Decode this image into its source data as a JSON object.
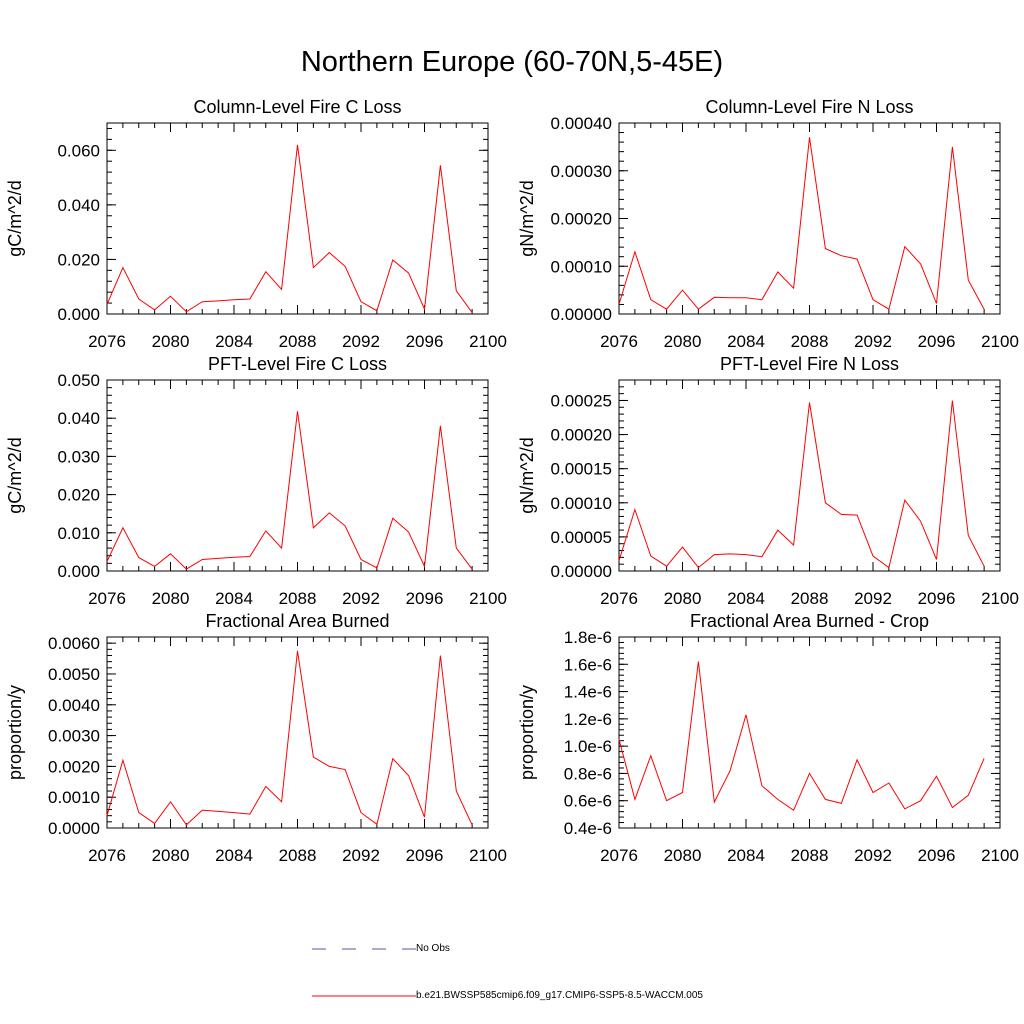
{
  "title": "Northern Europe (60-70N,5-45E)",
  "colors": {
    "series": "#ff0000",
    "obs": "#5555aa",
    "axis": "#000000"
  },
  "legend": [
    {
      "label": "No Obs",
      "style": "dashed"
    },
    {
      "label": "b.e21.BWSSP585cmip6.f09_g17.CMIP6-SSP5-8.5-WACCM.005",
      "style": "solid"
    }
  ],
  "chart_data": [
    {
      "type": "line",
      "title": "Column-Level Fire C Loss",
      "ylabel": "gC/m^2/d",
      "xlim": [
        2076,
        2100
      ],
      "ylim": [
        0,
        0.07
      ],
      "xticks": [
        "2076",
        "2080",
        "2084",
        "2088",
        "2092",
        "2096",
        "2100"
      ],
      "yticks": [
        {
          "v": 0,
          "label": "0.000"
        },
        {
          "v": 0.02,
          "label": "0.020"
        },
        {
          "v": 0.04,
          "label": "0.040"
        },
        {
          "v": 0.06,
          "label": "0.060"
        }
      ],
      "x": [
        2076,
        2077,
        2078,
        2079,
        2080,
        2081,
        2082,
        2083,
        2084,
        2085,
        2086,
        2087,
        2088,
        2089,
        2090,
        2091,
        2092,
        2093,
        2094,
        2095,
        2096,
        2097,
        2098,
        2099
      ],
      "series": [
        {
          "name": "b.e21.BWSSP585cmip6.f09_g17.CMIP6-SSP5-8.5-WACCM.005",
          "values": [
            0.0035,
            0.017,
            0.0055,
            0.0015,
            0.0065,
            0.0008,
            0.0045,
            0.0048,
            0.0052,
            0.0055,
            0.0155,
            0.009,
            0.062,
            0.017,
            0.0225,
            0.0175,
            0.0045,
            0.0012,
            0.0198,
            0.015,
            0.0018,
            0.0545,
            0.0085,
            0.0005
          ]
        }
      ]
    },
    {
      "type": "line",
      "title": "Column-Level Fire N Loss",
      "ylabel": "gN/m^2/d",
      "xlim": [
        2076,
        2100
      ],
      "ylim": [
        0,
        0.0004
      ],
      "xticks": [
        "2076",
        "2080",
        "2084",
        "2088",
        "2092",
        "2096",
        "2100"
      ],
      "yticks": [
        {
          "v": 0,
          "label": "0.00000"
        },
        {
          "v": 0.0001,
          "label": "0.00010"
        },
        {
          "v": 0.0002,
          "label": "0.00020"
        },
        {
          "v": 0.0003,
          "label": "0.00030"
        },
        {
          "v": 0.0004,
          "label": "0.00040"
        }
      ],
      "x": [
        2076,
        2077,
        2078,
        2079,
        2080,
        2081,
        2082,
        2083,
        2084,
        2085,
        2086,
        2087,
        2088,
        2089,
        2090,
        2091,
        2092,
        2093,
        2094,
        2095,
        2096,
        2097,
        2098,
        2099
      ],
      "series": [
        {
          "name": "b.e21.BWSSP585cmip6.f09_g17.CMIP6-SSP5-8.5-WACCM.005",
          "values": [
            2e-05,
            0.00013,
            3e-05,
            1e-05,
            5e-05,
            1e-05,
            3.5e-05,
            3.4e-05,
            3.4e-05,
            3e-05,
            8.8e-05,
            5.4e-05,
            0.00037,
            0.000137,
            0.000122,
            0.000115,
            3e-05,
            1e-05,
            0.000141,
            0.000105,
            2.2e-05,
            0.00035,
            7.1e-05,
            1e-05
          ]
        }
      ]
    },
    {
      "type": "line",
      "title": "PFT-Level Fire C Loss",
      "ylabel": "gC/m^2/d",
      "xlim": [
        2076,
        2100
      ],
      "ylim": [
        0,
        0.05
      ],
      "xticks": [
        "2076",
        "2080",
        "2084",
        "2088",
        "2092",
        "2096",
        "2100"
      ],
      "yticks": [
        {
          "v": 0,
          "label": "0.000"
        },
        {
          "v": 0.01,
          "label": "0.010"
        },
        {
          "v": 0.02,
          "label": "0.020"
        },
        {
          "v": 0.03,
          "label": "0.030"
        },
        {
          "v": 0.04,
          "label": "0.040"
        },
        {
          "v": 0.05,
          "label": "0.050"
        }
      ],
      "x": [
        2076,
        2077,
        2078,
        2079,
        2080,
        2081,
        2082,
        2083,
        2084,
        2085,
        2086,
        2087,
        2088,
        2089,
        2090,
        2091,
        2092,
        2093,
        2094,
        2095,
        2096,
        2097,
        2098,
        2099
      ],
      "series": [
        {
          "name": "b.e21.BWSSP585cmip6.f09_g17.CMIP6-SSP5-8.5-WACCM.005",
          "values": [
            0.0025,
            0.0113,
            0.0035,
            0.0012,
            0.0045,
            0.0005,
            0.003,
            0.0033,
            0.0036,
            0.0038,
            0.0105,
            0.006,
            0.0418,
            0.0113,
            0.0152,
            0.0118,
            0.003,
            0.0008,
            0.0138,
            0.0102,
            0.0012,
            0.038,
            0.006,
            0.0005
          ]
        }
      ]
    },
    {
      "type": "line",
      "title": "PFT-Level Fire N Loss",
      "ylabel": "gN/m^2/d",
      "xlim": [
        2076,
        2100
      ],
      "ylim": [
        0,
        0.00028
      ],
      "xticks": [
        "2076",
        "2080",
        "2084",
        "2088",
        "2092",
        "2096",
        "2100"
      ],
      "yticks": [
        {
          "v": 0,
          "label": "0.00000"
        },
        {
          "v": 5e-05,
          "label": "0.00005"
        },
        {
          "v": 0.0001,
          "label": "0.00010"
        },
        {
          "v": 0.00015,
          "label": "0.00015"
        },
        {
          "v": 0.0002,
          "label": "0.00020"
        },
        {
          "v": 0.00025,
          "label": "0.00025"
        }
      ],
      "x": [
        2076,
        2077,
        2078,
        2079,
        2080,
        2081,
        2082,
        2083,
        2084,
        2085,
        2086,
        2087,
        2088,
        2089,
        2090,
        2091,
        2092,
        2093,
        2094,
        2095,
        2096,
        2097,
        2098,
        2099
      ],
      "series": [
        {
          "name": "b.e21.BWSSP585cmip6.f09_g17.CMIP6-SSP5-8.5-WACCM.005",
          "values": [
            1.5e-05,
            9e-05,
            2.2e-05,
            7e-06,
            3.5e-05,
            5e-06,
            2.4e-05,
            2.5e-05,
            2.4e-05,
            2.1e-05,
            6e-05,
            3.8e-05,
            0.000247,
            0.0001,
            8.3e-05,
            8.2e-05,
            2.2e-05,
            5e-06,
            0.000104,
            7.3e-05,
            1.7e-05,
            0.00025,
            5.2e-05,
            7e-06
          ]
        }
      ]
    },
    {
      "type": "line",
      "title": "Fractional Area Burned",
      "ylabel": "proportion/y",
      "xlim": [
        2076,
        2100
      ],
      "ylim": [
        0,
        0.0062
      ],
      "xticks": [
        "2076",
        "2080",
        "2084",
        "2088",
        "2092",
        "2096",
        "2100"
      ],
      "yticks": [
        {
          "v": 0,
          "label": "0.0000"
        },
        {
          "v": 0.001,
          "label": "0.0010"
        },
        {
          "v": 0.002,
          "label": "0.0020"
        },
        {
          "v": 0.003,
          "label": "0.0030"
        },
        {
          "v": 0.004,
          "label": "0.0040"
        },
        {
          "v": 0.005,
          "label": "0.0050"
        },
        {
          "v": 0.006,
          "label": "0.0060"
        }
      ],
      "x": [
        2076,
        2077,
        2078,
        2079,
        2080,
        2081,
        2082,
        2083,
        2084,
        2085,
        2086,
        2087,
        2088,
        2089,
        2090,
        2091,
        2092,
        2093,
        2094,
        2095,
        2096,
        2097,
        2098,
        2099
      ],
      "series": [
        {
          "name": "b.e21.BWSSP585cmip6.f09_g17.CMIP6-SSP5-8.5-WACCM.005",
          "values": [
            0.0004,
            0.0022,
            0.0005,
            0.00015,
            0.00085,
            0.0001,
            0.00058,
            0.00054,
            0.0005,
            0.00045,
            0.00135,
            0.00085,
            0.00575,
            0.0023,
            0.002,
            0.0019,
            0.0005,
            0.00012,
            0.00225,
            0.0017,
            0.00035,
            0.0056,
            0.0012,
            0.0001
          ]
        }
      ]
    },
    {
      "type": "line",
      "title": "Fractional Area Burned - Crop",
      "ylabel": "proportion/y",
      "xlim": [
        2076,
        2100
      ],
      "ylim": [
        4e-07,
        1.8e-06
      ],
      "xticks": [
        "2076",
        "2080",
        "2084",
        "2088",
        "2092",
        "2096",
        "2100"
      ],
      "yticks": [
        {
          "v": 4e-07,
          "label": "0.4e-6"
        },
        {
          "v": 6e-07,
          "label": "0.6e-6"
        },
        {
          "v": 8e-07,
          "label": "0.8e-6"
        },
        {
          "v": 1e-06,
          "label": "1.0e-6"
        },
        {
          "v": 1.2e-06,
          "label": "1.2e-6"
        },
        {
          "v": 1.4e-06,
          "label": "1.4e-6"
        },
        {
          "v": 1.6e-06,
          "label": "1.6e-6"
        },
        {
          "v": 1.8e-06,
          "label": "1.8e-6"
        }
      ],
      "x": [
        2076,
        2077,
        2078,
        2079,
        2080,
        2081,
        2082,
        2083,
        2084,
        2085,
        2086,
        2087,
        2088,
        2089,
        2090,
        2091,
        2092,
        2093,
        2094,
        2095,
        2096,
        2097,
        2098,
        2099
      ],
      "series": [
        {
          "name": "b.e21.BWSSP585cmip6.f09_g17.CMIP6-SSP5-8.5-WACCM.005",
          "values": [
            1.05e-06,
            6.1e-07,
            9.3e-07,
            6e-07,
            6.6e-07,
            1.62e-06,
            5.9e-07,
            8.2e-07,
            1.23e-06,
            7.1e-07,
            6.1e-07,
            5.3e-07,
            8e-07,
            6.1e-07,
            5.8e-07,
            9e-07,
            6.6e-07,
            7.3e-07,
            5.4e-07,
            6e-07,
            7.8e-07,
            5.5e-07,
            6.4e-07,
            9.1e-07
          ]
        }
      ]
    }
  ]
}
